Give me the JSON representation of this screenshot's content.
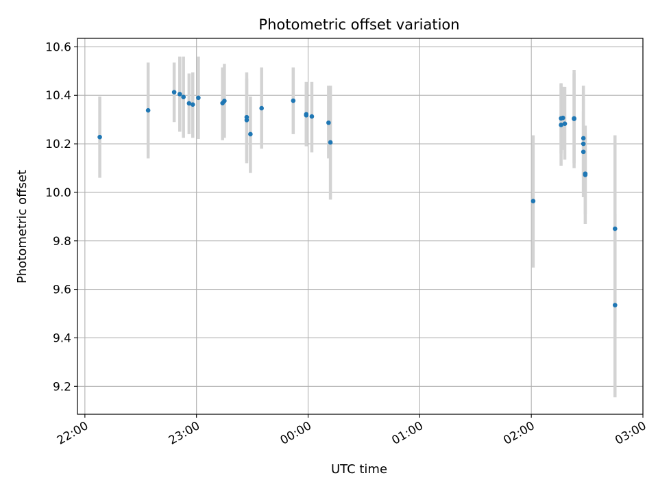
{
  "chart_data": {
    "type": "scatter",
    "title": "Photometric offset variation",
    "xlabel": "UTC time",
    "ylabel": "Photometric offset",
    "x_axis": "time",
    "xlim": [
      "21:56",
      "03:00"
    ],
    "ylim": [
      9.085,
      10.635
    ],
    "x_ticks": [
      "22:00",
      "23:00",
      "00:00",
      "01:00",
      "02:00",
      "03:00"
    ],
    "y_ticks": [
      9.2,
      9.4,
      9.6,
      9.8,
      10.0,
      10.2,
      10.4,
      10.6
    ],
    "y_tick_labels": [
      "9.2",
      "9.4",
      "9.6",
      "9.8",
      "10.0",
      "10.2",
      "10.4",
      "10.6"
    ],
    "grid": true,
    "marker_color": "#1f77b4",
    "errorbar_color": "#d3d3d3",
    "points": [
      {
        "t": "22:08",
        "y": 10.228,
        "lo": 10.06,
        "hi": 10.395
      },
      {
        "t": "22:34",
        "y": 10.338,
        "lo": 10.14,
        "hi": 10.535
      },
      {
        "t": "22:48",
        "y": 10.413,
        "lo": 10.29,
        "hi": 10.535
      },
      {
        "t": "22:51",
        "y": 10.405,
        "lo": 10.25,
        "hi": 10.56
      },
      {
        "t": "22:53",
        "y": 10.393,
        "lo": 10.225,
        "hi": 10.56
      },
      {
        "t": "22:56",
        "y": 10.367,
        "lo": 10.24,
        "hi": 10.49
      },
      {
        "t": "22:58",
        "y": 10.362,
        "lo": 10.225,
        "hi": 10.495
      },
      {
        "t": "23:01",
        "y": 10.39,
        "lo": 10.22,
        "hi": 10.56
      },
      {
        "t": "23:14",
        "y": 10.368,
        "lo": 10.215,
        "hi": 10.515
      },
      {
        "t": "23:15",
        "y": 10.377,
        "lo": 10.225,
        "hi": 10.53
      },
      {
        "t": "23:27",
        "y": 10.298,
        "lo": 10.13,
        "hi": 10.47
      },
      {
        "t": "23:27",
        "y": 10.31,
        "lo": 10.12,
        "hi": 10.495
      },
      {
        "t": "23:29",
        "y": 10.24,
        "lo": 10.08,
        "hi": 10.395
      },
      {
        "t": "23:35",
        "y": 10.347,
        "lo": 10.18,
        "hi": 10.515
      },
      {
        "t": "23:52",
        "y": 10.378,
        "lo": 10.24,
        "hi": 10.515
      },
      {
        "t": "23:59",
        "y": 10.322,
        "lo": 10.19,
        "hi": 10.455
      },
      {
        "t": "23:59",
        "y": 10.318,
        "lo": 10.195,
        "hi": 10.44
      },
      {
        "t": "00:02",
        "y": 10.313,
        "lo": 10.165,
        "hi": 10.455
      },
      {
        "t": "00:11",
        "y": 10.287,
        "lo": 10.14,
        "hi": 10.44
      },
      {
        "t": "00:12",
        "y": 10.206,
        "lo": 9.97,
        "hi": 10.44
      },
      {
        "t": "02:01",
        "y": 9.964,
        "lo": 9.69,
        "hi": 10.235
      },
      {
        "t": "02:16",
        "y": 10.278,
        "lo": 10.11,
        "hi": 10.445
      },
      {
        "t": "02:16",
        "y": 10.305,
        "lo": 10.16,
        "hi": 10.45
      },
      {
        "t": "02:17",
        "y": 10.307,
        "lo": 10.175,
        "hi": 10.435
      },
      {
        "t": "02:18",
        "y": 10.283,
        "lo": 10.135,
        "hi": 10.435
      },
      {
        "t": "02:23",
        "y": 10.303,
        "lo": 10.12,
        "hi": 10.49
      },
      {
        "t": "02:23",
        "y": 10.305,
        "lo": 10.1,
        "hi": 10.505
      },
      {
        "t": "02:28",
        "y": 10.223,
        "lo": 10.06,
        "hi": 10.385
      },
      {
        "t": "02:28",
        "y": 10.2,
        "lo": 9.98,
        "hi": 10.44
      },
      {
        "t": "02:28",
        "y": 10.167,
        "lo": 10.0,
        "hi": 10.335
      },
      {
        "t": "02:29",
        "y": 10.072,
        "lo": 9.87,
        "hi": 10.275
      },
      {
        "t": "02:29",
        "y": 10.077,
        "lo": 9.91,
        "hi": 10.245
      },
      {
        "t": "02:45",
        "y": 9.85,
        "lo": 9.465,
        "hi": 10.235
      },
      {
        "t": "02:45",
        "y": 9.535,
        "lo": 9.155,
        "hi": 9.91
      }
    ]
  }
}
